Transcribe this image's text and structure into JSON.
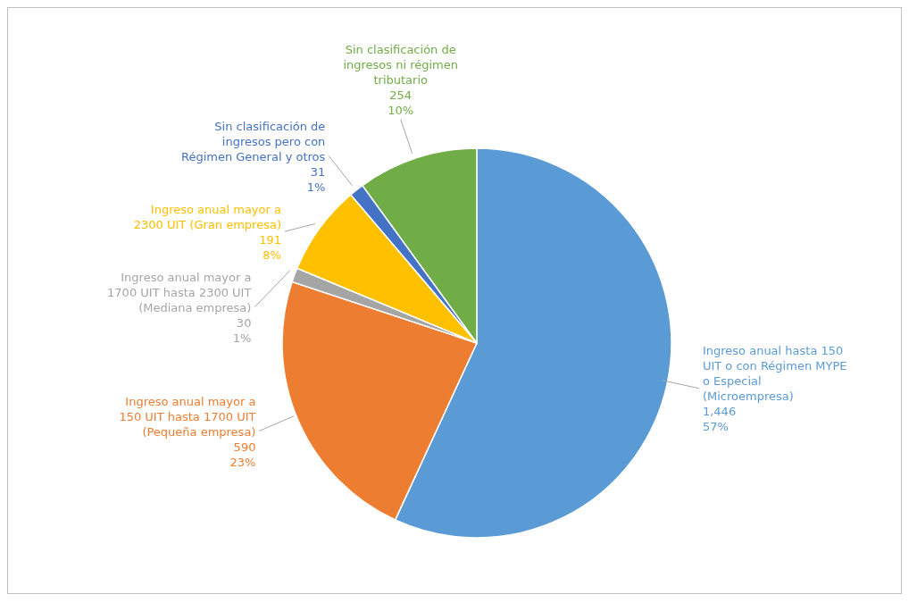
{
  "chart_data": {
    "type": "pie",
    "categories": [
      "Ingreso anual hasta 150 UIT o con Régimen MYPE o Especial (Microempresa)",
      "Ingreso anual mayor a 150 UIT hasta 1700 UIT (Pequeña empresa)",
      "Ingreso anual mayor a 1700 UIT hasta 2300 UIT (Mediana empresa)",
      "Ingreso anual mayor a 2300 UIT (Gran empresa)",
      "Sin clasificación de ingresos pero con Régimen General y otros",
      "Sin clasificación de ingresos ni régimen tributario"
    ],
    "values": [
      1446,
      590,
      30,
      191,
      31,
      254
    ],
    "value_labels": [
      "1,446\n57%",
      "590\n23%",
      "30\n1%",
      "191\n8%",
      "31\n1%",
      "254\n10%"
    ],
    "colors": [
      "#5b9bd5",
      "#ed7d31",
      "#a5a5a5",
      "#ffc000",
      "#4472c4",
      "#70ad47"
    ]
  }
}
